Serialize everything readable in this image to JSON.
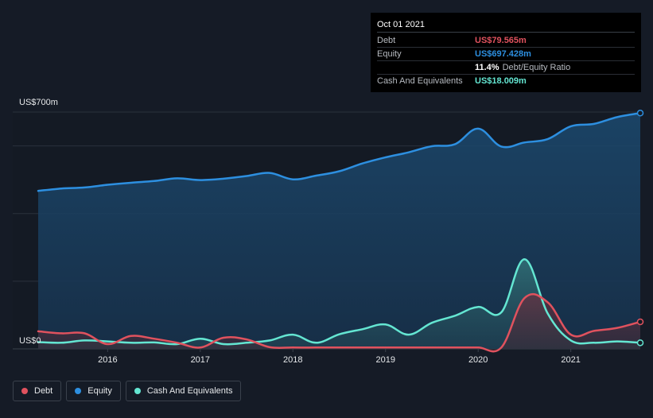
{
  "chart_data": {
    "type": "area",
    "y_axis": {
      "top_label": "US$700m",
      "bottom_label": "US$0",
      "ylim": [
        0,
        700
      ]
    },
    "x_ticks": [
      "2016",
      "2017",
      "2018",
      "2019",
      "2020",
      "2021"
    ],
    "x_tick_values": [
      2016.0,
      2017.0,
      2018.0,
      2019.0,
      2020.0,
      2021.0
    ],
    "xlim": [
      2015.25,
      2021.75
    ],
    "series": [
      {
        "name": "Debt",
        "color": "#e0525e",
        "x": [
          2015.25,
          2015.5,
          2015.75,
          2016.0,
          2016.25,
          2016.5,
          2016.75,
          2017.0,
          2017.25,
          2017.5,
          2017.75,
          2018.0,
          2018.25,
          2018.5,
          2018.75,
          2019.0,
          2019.25,
          2019.5,
          2019.75,
          2020.0,
          2020.25,
          2020.5,
          2020.75,
          2021.0,
          2021.25,
          2021.5,
          2021.75
        ],
        "values": [
          52,
          46,
          46,
          14,
          38,
          30,
          18,
          4,
          33,
          28,
          5,
          4,
          4,
          4,
          4,
          4,
          4,
          4,
          4,
          4,
          4,
          150,
          138,
          42,
          53,
          62,
          80
        ]
      },
      {
        "name": "Equity",
        "color": "#2d8fe0",
        "x": [
          2015.25,
          2015.5,
          2015.75,
          2016.0,
          2016.25,
          2016.5,
          2016.75,
          2017.0,
          2017.25,
          2017.5,
          2017.75,
          2018.0,
          2018.25,
          2018.5,
          2018.75,
          2019.0,
          2019.25,
          2019.5,
          2019.75,
          2020.0,
          2020.25,
          2020.5,
          2020.75,
          2021.0,
          2021.25,
          2021.5,
          2021.75
        ],
        "values": [
          467,
          474,
          477,
          485,
          491,
          496,
          504,
          499,
          503,
          511,
          520,
          501,
          512,
          525,
          548,
          566,
          581,
          599,
          605,
          651,
          598,
          610,
          620,
          658,
          665,
          685,
          697
        ]
      },
      {
        "name": "Cash And Equivalents",
        "color": "#64e6d2",
        "x": [
          2015.25,
          2015.5,
          2015.75,
          2016.0,
          2016.25,
          2016.5,
          2016.75,
          2017.0,
          2017.25,
          2017.5,
          2017.75,
          2018.0,
          2018.25,
          2018.5,
          2018.75,
          2019.0,
          2019.25,
          2019.5,
          2019.75,
          2020.0,
          2020.25,
          2020.5,
          2020.75,
          2021.0,
          2021.25,
          2021.5,
          2021.75
        ],
        "values": [
          20,
          18,
          25,
          22,
          18,
          19,
          14,
          30,
          14,
          18,
          25,
          42,
          18,
          43,
          58,
          72,
          42,
          77,
          98,
          124,
          108,
          265,
          105,
          25,
          18,
          22,
          18
        ]
      }
    ],
    "grid": true,
    "legend_position": "bottom-left"
  },
  "tooltip": {
    "date": "Oct 01 2021",
    "rows": [
      {
        "label": "Debt",
        "value": "US$79.565m",
        "color": "#e0525e"
      },
      {
        "label": "Equity",
        "value": "US$697.428m",
        "color": "#2d8fe0"
      },
      {
        "label": "",
        "value": "11.4%",
        "suffix": "Debt/Equity Ratio"
      },
      {
        "label": "Cash And Equivalents",
        "value": "US$18.009m",
        "color": "#64e6d2"
      }
    ]
  },
  "legend": [
    {
      "label": "Debt",
      "color": "#e0525e"
    },
    {
      "label": "Equity",
      "color": "#2d8fe0"
    },
    {
      "label": "Cash And Equivalents",
      "color": "#64e6d2"
    }
  ]
}
